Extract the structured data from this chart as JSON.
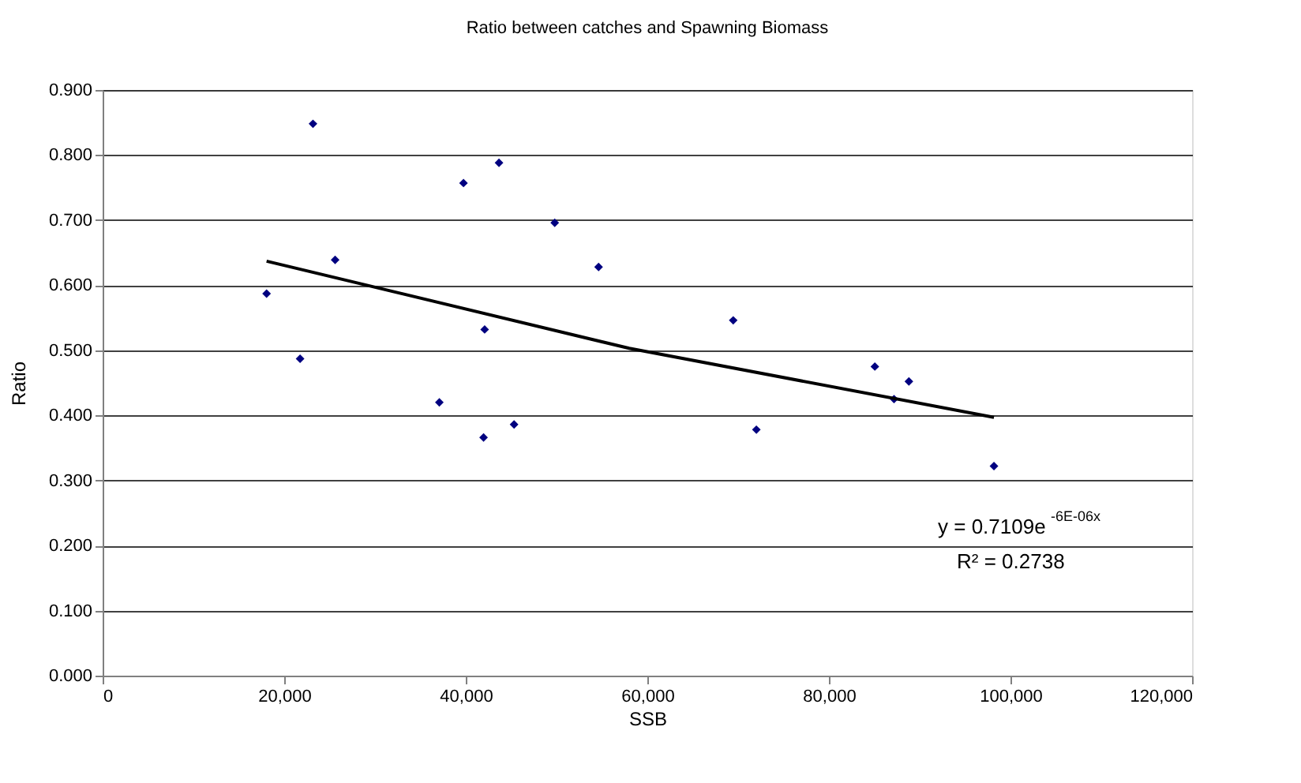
{
  "chart_data": {
    "type": "scatter",
    "title": "Ratio between catches and Spawning Biomass",
    "xlabel": "SSB",
    "ylabel": "Ratio",
    "x": [
      23170,
      18060,
      25610,
      39750,
      43660,
      42080,
      49800,
      54630,
      21750,
      37090,
      41960,
      45320,
      69460,
      72010,
      85060,
      87170,
      88810,
      98180
    ],
    "series": [
      {
        "color": "#000080",
        "marker": "diamond",
        "values": [
          0.848,
          0.587,
          0.639,
          0.757,
          0.788,
          0.532,
          0.696,
          0.628,
          0.487,
          0.42,
          0.366,
          0.386,
          0.546,
          0.378,
          0.475,
          0.425,
          0.452,
          0.322
        ]
      },
      {
        "type": "line",
        "color": "#000000",
        "line_style": "solid",
        "x": [
          18060,
          58000,
          98180
        ],
        "values": [
          0.637,
          0.503,
          0.397
        ]
      }
    ],
    "xlim": [
      0,
      120000
    ],
    "xticks": [
      0,
      {
        "value": 20000,
        "label": "20,000"
      },
      {
        "value": 40000,
        "label": "40,000"
      },
      {
        "value": 60000,
        "label": "60,000"
      },
      {
        "value": 80000,
        "label": "80,000"
      },
      {
        "value": 100000,
        "label": "100,000"
      },
      {
        "value": 120000,
        "label": "120,000"
      }
    ],
    "ylim": [
      0,
      0.9
    ],
    "yticks": [
      {
        "value": 0,
        "label": "0.000"
      },
      {
        "value": 0.1,
        "label": "0.100"
      },
      {
        "value": 0.2,
        "label": "0.200"
      },
      {
        "value": 0.3,
        "label": "0.300"
      },
      {
        "value": 0.4,
        "label": "0.400"
      },
      {
        "value": 0.5,
        "label": "0.500"
      },
      {
        "value": 0.6,
        "label": "0.600"
      },
      {
        "value": 0.7,
        "label": "0.700"
      },
      {
        "value": 0.8,
        "label": "0.800"
      },
      {
        "value": 0.9,
        "label": "0.900"
      }
    ],
    "annotations": [
      "y = 0.7109e$^{-6E-06x}$",
      "R² = 0.2738"
    ],
    "grid": "y",
    "legend": false
  }
}
